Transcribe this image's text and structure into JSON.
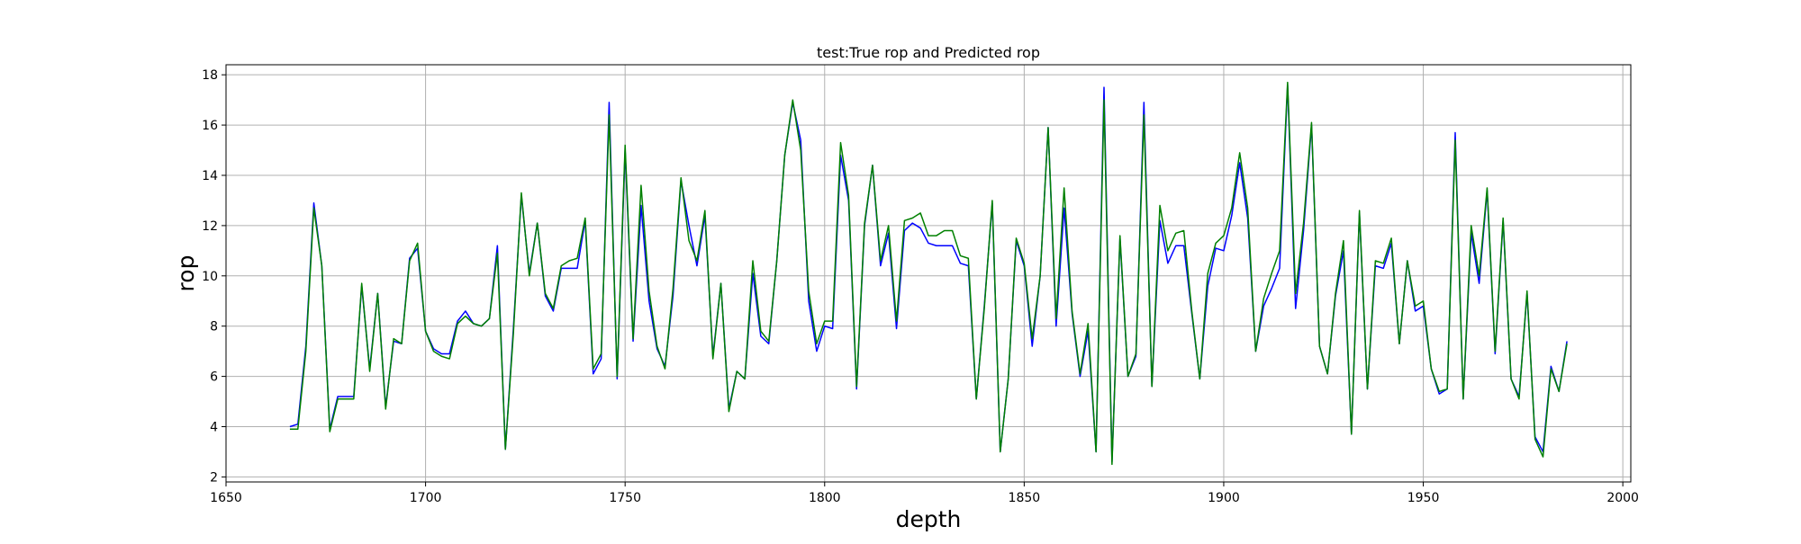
{
  "chart_data": {
    "type": "line",
    "title": "test:True rop and Predicted rop",
    "xlabel": "depth",
    "ylabel": "rop",
    "xlim": [
      1650,
      2002
    ],
    "ylim": [
      1.8,
      18.4
    ],
    "xticks": [
      1650,
      1700,
      1750,
      1800,
      1850,
      1900,
      1950,
      2000
    ],
    "yticks": [
      2,
      4,
      6,
      8,
      10,
      12,
      14,
      16,
      18
    ],
    "grid": true,
    "x": [
      1666,
      1668,
      1670,
      1672,
      1674,
      1676,
      1678,
      1680,
      1682,
      1684,
      1686,
      1688,
      1690,
      1692,
      1694,
      1696,
      1698,
      1700,
      1702,
      1704,
      1706,
      1708,
      1710,
      1712,
      1714,
      1716,
      1718,
      1720,
      1722,
      1724,
      1726,
      1728,
      1730,
      1732,
      1734,
      1736,
      1738,
      1740,
      1742,
      1744,
      1746,
      1748,
      1750,
      1752,
      1754,
      1756,
      1758,
      1760,
      1762,
      1764,
      1766,
      1768,
      1770,
      1772,
      1774,
      1776,
      1778,
      1780,
      1782,
      1784,
      1786,
      1788,
      1790,
      1792,
      1794,
      1796,
      1798,
      1800,
      1802,
      1804,
      1806,
      1808,
      1810,
      1812,
      1814,
      1816,
      1818,
      1820,
      1822,
      1824,
      1826,
      1828,
      1830,
      1832,
      1834,
      1836,
      1838,
      1840,
      1842,
      1844,
      1846,
      1848,
      1850,
      1852,
      1854,
      1856,
      1858,
      1860,
      1862,
      1864,
      1866,
      1868,
      1870,
      1872,
      1874,
      1876,
      1878,
      1880,
      1882,
      1884,
      1886,
      1888,
      1890,
      1892,
      1894,
      1896,
      1898,
      1900,
      1902,
      1904,
      1906,
      1908,
      1910,
      1912,
      1914,
      1916,
      1918,
      1920,
      1922,
      1924,
      1926,
      1928,
      1930,
      1932,
      1934,
      1936,
      1938,
      1940,
      1942,
      1944,
      1946,
      1948,
      1950,
      1952,
      1954,
      1956,
      1958,
      1960,
      1962,
      1964,
      1966,
      1968,
      1970,
      1972,
      1974,
      1976,
      1978,
      1980,
      1982,
      1984,
      1986
    ],
    "series": [
      {
        "color": "#0000ff",
        "values": [
          4.0,
          4.1,
          7.2,
          12.9,
          10.4,
          3.9,
          5.2,
          5.2,
          5.2,
          9.6,
          6.3,
          9.3,
          4.8,
          7.4,
          7.3,
          10.7,
          11.1,
          7.8,
          7.1,
          6.9,
          6.9,
          8.2,
          8.6,
          8.1,
          8.0,
          8.3,
          11.2,
          3.1,
          7.9,
          13.2,
          10.1,
          12.1,
          9.2,
          8.6,
          10.3,
          10.3,
          10.3,
          12.2,
          6.1,
          6.7,
          16.9,
          5.9,
          15.0,
          7.4,
          12.8,
          9.0,
          7.1,
          6.4,
          9.2,
          13.8,
          12.0,
          10.4,
          12.4,
          6.8,
          9.7,
          4.7,
          6.2,
          5.9,
          10.1,
          7.6,
          7.3,
          10.6,
          14.8,
          16.9,
          15.4,
          9.0,
          7.0,
          8.0,
          7.9,
          14.8,
          13.0,
          5.5,
          12.0,
          14.4,
          10.4,
          11.7,
          7.9,
          11.8,
          12.1,
          11.9,
          11.3,
          11.2,
          11.2,
          11.2,
          10.5,
          10.4,
          5.1,
          8.8,
          12.9,
          3.0,
          5.9,
          11.4,
          10.4,
          7.2,
          10.0,
          15.9,
          8.0,
          12.7,
          8.5,
          6.0,
          7.8,
          3.0,
          17.5,
          2.6,
          11.5,
          6.0,
          6.8,
          16.9,
          5.6,
          12.2,
          10.5,
          11.2,
          11.2,
          8.5,
          5.9,
          9.6,
          11.1,
          11.0,
          12.4,
          14.5,
          12.3,
          7.0,
          8.8,
          9.5,
          10.3,
          17.6,
          8.7,
          11.8,
          16.0,
          7.2,
          6.1,
          9.2,
          11.0,
          3.7,
          12.5,
          5.5,
          10.4,
          10.3,
          11.3,
          7.3,
          10.6,
          8.6,
          8.8,
          6.3,
          5.3,
          5.5,
          15.7,
          5.1,
          11.7,
          9.7,
          13.4,
          6.9,
          12.2,
          5.9,
          5.2,
          9.3,
          3.6,
          3.0,
          6.4,
          5.4,
          7.4
        ]
      },
      {
        "color": "#008000",
        "values": [
          3.9,
          3.9,
          7.0,
          12.7,
          10.4,
          3.8,
          5.1,
          5.1,
          5.1,
          9.7,
          6.2,
          9.3,
          4.7,
          7.5,
          7.3,
          10.6,
          11.3,
          7.8,
          7.0,
          6.8,
          6.7,
          8.1,
          8.4,
          8.1,
          8.0,
          8.3,
          10.9,
          3.1,
          7.7,
          13.3,
          10.0,
          12.1,
          9.3,
          8.7,
          10.4,
          10.6,
          10.7,
          12.3,
          6.3,
          6.9,
          16.4,
          6.0,
          15.2,
          7.5,
          13.6,
          9.4,
          7.2,
          6.3,
          9.5,
          13.9,
          11.4,
          10.6,
          12.6,
          6.7,
          9.7,
          4.6,
          6.2,
          5.9,
          10.6,
          7.8,
          7.4,
          10.6,
          14.8,
          17.0,
          15.0,
          9.4,
          7.3,
          8.2,
          8.2,
          15.3,
          13.2,
          5.6,
          12.1,
          14.4,
          10.6,
          12.0,
          8.2,
          12.2,
          12.3,
          12.5,
          11.6,
          11.6,
          11.8,
          11.8,
          10.8,
          10.7,
          5.1,
          8.7,
          13.0,
          3.0,
          5.9,
          11.5,
          10.5,
          7.5,
          10.0,
          15.9,
          8.3,
          13.5,
          8.6,
          6.1,
          8.1,
          3.0,
          17.0,
          2.5,
          11.6,
          6.0,
          6.9,
          16.4,
          5.6,
          12.8,
          11.0,
          11.7,
          11.8,
          8.6,
          5.9,
          10.1,
          11.3,
          11.6,
          12.7,
          14.9,
          12.7,
          7.0,
          9.1,
          10.1,
          11.0,
          17.7,
          9.3,
          12.1,
          16.1,
          7.2,
          6.1,
          9.3,
          11.4,
          3.7,
          12.6,
          5.5,
          10.6,
          10.5,
          11.5,
          7.3,
          10.6,
          8.8,
          9.0,
          6.3,
          5.4,
          5.5,
          15.4,
          5.1,
          12.0,
          10.0,
          13.5,
          7.0,
          12.3,
          5.9,
          5.1,
          9.4,
          3.5,
          2.8,
          6.3,
          5.4,
          7.3
        ]
      }
    ]
  }
}
